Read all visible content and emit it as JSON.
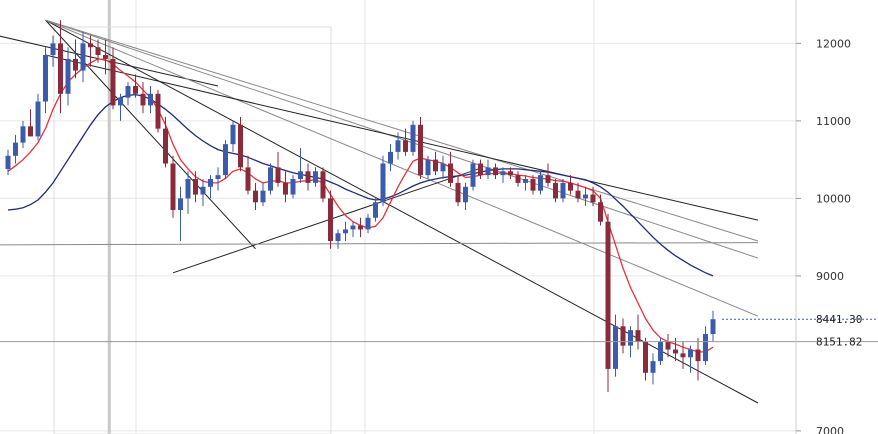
{
  "chart_data": {
    "type": "candlestick",
    "y_axis": {
      "ticks": [
        {
          "value": 12000,
          "label": "12000"
        },
        {
          "value": 11000,
          "label": "11000"
        },
        {
          "value": 10000,
          "label": "10000"
        },
        {
          "value": 9000,
          "label": "9000"
        },
        {
          "value": 7000,
          "label": "7000"
        }
      ],
      "range": [
        6960,
        12560
      ],
      "position": "right",
      "grid": true
    },
    "x_axis": {
      "bar_count": 100
    },
    "price_markers": [
      {
        "value": 8441.3,
        "label": "8441.30",
        "style": "dotted-blue"
      },
      {
        "value": 8151.82,
        "label": "8151.82",
        "style": "solid-gray"
      }
    ],
    "colors": {
      "up_candle": "#3b5bab",
      "down_candle": "#8b2a3a",
      "fast_ma": "#e8323c",
      "slow_ma": "#1f2a7a",
      "trendline_dark": "#222222",
      "trendline_gray": "#888888",
      "grid": "#e6e6e6"
    },
    "ohlc": [
      [
        10380,
        10630,
        10300,
        10550
      ],
      [
        10550,
        10820,
        10450,
        10720
      ],
      [
        10720,
        11000,
        10650,
        10930
      ],
      [
        10930,
        11150,
        10800,
        10800
      ],
      [
        10800,
        11350,
        10750,
        11250
      ],
      [
        11250,
        11950,
        11100,
        11850
      ],
      [
        11850,
        12100,
        11700,
        12000
      ],
      [
        12000,
        12300,
        11100,
        11350
      ],
      [
        11350,
        11950,
        11200,
        11800
      ],
      [
        11800,
        12050,
        11550,
        11650
      ],
      [
        11650,
        12150,
        11500,
        12000
      ],
      [
        12000,
        12100,
        11700,
        11950
      ],
      [
        11950,
        12050,
        11750,
        11850
      ],
      [
        11850,
        12050,
        11600,
        11800
      ],
      [
        11800,
        11950,
        11150,
        11200
      ],
      [
        11200,
        11350,
        11000,
        11300
      ],
      [
        11300,
        11500,
        11200,
        11450
      ],
      [
        11450,
        11600,
        11300,
        11350
      ],
      [
        11350,
        11500,
        11100,
        11200
      ],
      [
        11200,
        11450,
        11100,
        11350
      ],
      [
        11350,
        11400,
        10850,
        10900
      ],
      [
        10900,
        11050,
        10400,
        10450
      ],
      [
        10450,
        10550,
        9750,
        9850
      ],
      [
        9850,
        10150,
        9450,
        10000
      ],
      [
        10000,
        10350,
        9800,
        10250
      ],
      [
        10250,
        10350,
        9950,
        10050
      ],
      [
        10050,
        10250,
        9900,
        10150
      ],
      [
        10150,
        10300,
        10000,
        10250
      ],
      [
        10250,
        10400,
        10100,
        10300
      ],
      [
        10300,
        10750,
        10250,
        10700
      ],
      [
        10700,
        11000,
        10600,
        10950
      ],
      [
        10950,
        11050,
        10350,
        10400
      ],
      [
        10400,
        10550,
        10050,
        10100
      ],
      [
        10100,
        10200,
        9850,
        9950
      ],
      [
        9950,
        10200,
        9900,
        10100
      ],
      [
        10100,
        10450,
        10050,
        10400
      ],
      [
        10400,
        10600,
        10150,
        10200
      ],
      [
        10200,
        10350,
        9950,
        10050
      ],
      [
        10050,
        10300,
        10000,
        10250
      ],
      [
        10250,
        10650,
        10200,
        10350
      ],
      [
        10350,
        10450,
        10100,
        10200
      ],
      [
        10200,
        10400,
        10150,
        10350
      ],
      [
        10350,
        10400,
        9950,
        10000
      ],
      [
        10000,
        10100,
        9350,
        9450
      ],
      [
        9450,
        9600,
        9350,
        9550
      ],
      [
        9550,
        9700,
        9450,
        9600
      ],
      [
        9600,
        9700,
        9500,
        9650
      ],
      [
        9650,
        9750,
        9500,
        9600
      ],
      [
        9600,
        9800,
        9550,
        9750
      ],
      [
        9750,
        10000,
        9700,
        9950
      ],
      [
        9950,
        10550,
        9900,
        10450
      ],
      [
        10450,
        10700,
        10350,
        10600
      ],
      [
        10600,
        10850,
        10500,
        10750
      ],
      [
        10750,
        10900,
        10550,
        10600
      ],
      [
        10600,
        11000,
        10550,
        10950
      ],
      [
        10950,
        11050,
        10250,
        10300
      ],
      [
        10300,
        10550,
        10250,
        10500
      ],
      [
        10500,
        10600,
        10300,
        10350
      ],
      [
        10350,
        10550,
        10250,
        10450
      ],
      [
        10450,
        10600,
        10150,
        10200
      ],
      [
        10200,
        10300,
        9900,
        9950
      ],
      [
        9950,
        10200,
        9850,
        10150
      ],
      [
        10150,
        10500,
        10100,
        10450
      ],
      [
        10450,
        10500,
        10250,
        10300
      ],
      [
        10300,
        10500,
        10250,
        10400
      ],
      [
        10400,
        10450,
        10250,
        10300
      ],
      [
        10300,
        10400,
        10200,
        10350
      ],
      [
        10350,
        10400,
        10250,
        10300
      ],
      [
        10300,
        10350,
        10150,
        10200
      ],
      [
        10200,
        10300,
        10100,
        10250
      ],
      [
        10250,
        10300,
        10050,
        10100
      ],
      [
        10100,
        10350,
        10050,
        10300
      ],
      [
        10300,
        10450,
        10150,
        10200
      ],
      [
        10200,
        10250,
        9950,
        10000
      ],
      [
        10000,
        10250,
        9950,
        10200
      ],
      [
        10200,
        10300,
        10050,
        10100
      ],
      [
        10100,
        10200,
        9950,
        10000
      ],
      [
        10000,
        10150,
        9900,
        10050
      ],
      [
        10050,
        10150,
        9900,
        9950
      ],
      [
        9950,
        10050,
        9650,
        9700
      ],
      [
        9700,
        9800,
        7500,
        7800
      ],
      [
        7800,
        8500,
        7700,
        8350
      ],
      [
        8350,
        8450,
        8000,
        8100
      ],
      [
        8100,
        8350,
        7950,
        8300
      ],
      [
        8300,
        8500,
        8050,
        8150
      ],
      [
        8150,
        8200,
        7650,
        7750
      ],
      [
        7750,
        8000,
        7600,
        7900
      ],
      [
        7900,
        8200,
        7850,
        8150
      ],
      [
        8150,
        8250,
        7950,
        8050
      ],
      [
        8050,
        8200,
        7900,
        8000
      ],
      [
        8000,
        8150,
        7800,
        7950
      ],
      [
        7950,
        8100,
        7750,
        8050
      ],
      [
        8050,
        8200,
        7650,
        7900
      ],
      [
        7900,
        8350,
        7850,
        8250
      ],
      [
        8250,
        8550,
        8150,
        8441.3
      ]
    ],
    "fast_ma": [
      10350,
      10420,
      10500,
      10600,
      10720,
      10900,
      11150,
      11350,
      11500,
      11600,
      11680,
      11750,
      11800,
      11790,
      11730,
      11650,
      11580,
      11500,
      11400,
      11300,
      11150,
      10950,
      10700,
      10500,
      10380,
      10280,
      10220,
      10200,
      10200,
      10260,
      10350,
      10380,
      10330,
      10250,
      10200,
      10220,
      10230,
      10200,
      10200,
      10220,
      10230,
      10240,
      10200,
      10050,
      9900,
      9780,
      9700,
      9650,
      9620,
      9640,
      9750,
      9950,
      10150,
      10320,
      10480,
      10520,
      10500,
      10480,
      10450,
      10400,
      10330,
      10270,
      10280,
      10300,
      10320,
      10320,
      10330,
      10320,
      10300,
      10290,
      10270,
      10260,
      10250,
      10230,
      10220,
      10200,
      10170,
      10140,
      10100,
      10000,
      9700,
      9400,
      9100,
      8850,
      8650,
      8450,
      8300,
      8200,
      8150,
      8120,
      8080,
      8050,
      8020,
      8020,
      8080
    ],
    "slow_ma": [
      9850,
      9860,
      9880,
      9920,
      9980,
      10080,
      10200,
      10350,
      10500,
      10650,
      10800,
      10950,
      11080,
      11180,
      11250,
      11300,
      11330,
      11340,
      11320,
      11280,
      11220,
      11150,
      11070,
      10980,
      10890,
      10810,
      10740,
      10680,
      10630,
      10600,
      10580,
      10560,
      10530,
      10490,
      10450,
      10420,
      10390,
      10360,
      10330,
      10310,
      10290,
      10270,
      10250,
      10210,
      10170,
      10120,
      10080,
      10040,
      10000,
      9980,
      9990,
      10020,
      10060,
      10110,
      10160,
      10200,
      10230,
      10250,
      10270,
      10280,
      10290,
      10300,
      10320,
      10340,
      10360,
      10370,
      10380,
      10380,
      10380,
      10370,
      10360,
      10350,
      10340,
      10320,
      10300,
      10280,
      10260,
      10240,
      10200,
      10150,
      10080,
      9990,
      9900,
      9800,
      9700,
      9600,
      9500,
      9410,
      9330,
      9260,
      9200,
      9140,
      9090,
      9040,
      9000
    ],
    "trendlines": [
      {
        "from": [
          -5,
          12180
        ],
        "to": [
          28,
          11450
        ],
        "color": "dark"
      },
      {
        "from": [
          5,
          12300
        ],
        "to": [
          33,
          9350
        ],
        "color": "dark"
      },
      {
        "from": [
          5,
          12300
        ],
        "to": [
          100,
          7360
        ],
        "color": "dark"
      },
      {
        "from": [
          5,
          12300
        ],
        "to": [
          100,
          8480
        ],
        "color": "gray"
      },
      {
        "from": [
          5,
          12300
        ],
        "to": [
          100,
          9230
        ],
        "color": "gray"
      },
      {
        "from": [
          5,
          12300
        ],
        "to": [
          100,
          9450
        ],
        "color": "gray"
      },
      {
        "from": [
          5,
          11850
        ],
        "to": [
          100,
          9720
        ],
        "color": "dark"
      },
      {
        "from": [
          22,
          9040
        ],
        "to": [
          63,
          10390
        ],
        "color": "dark"
      },
      {
        "from": [
          -5,
          9400
        ],
        "to": [
          100,
          9430
        ],
        "color": "gray"
      }
    ],
    "vertical_lines": [
      13.5
    ]
  }
}
